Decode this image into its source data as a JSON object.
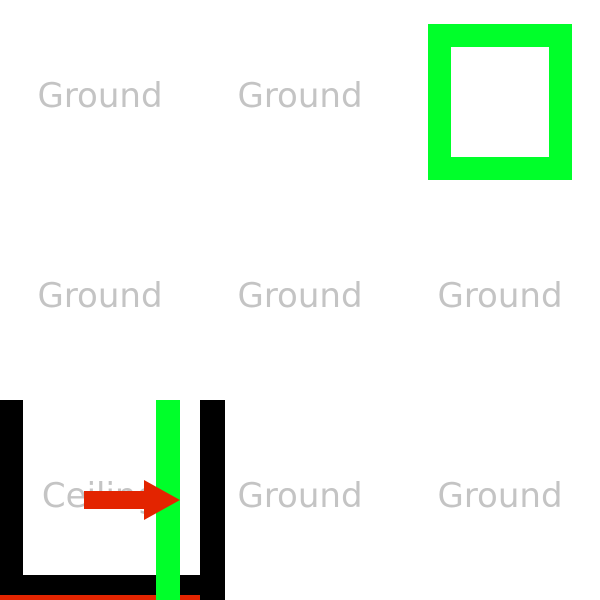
{
  "grid": {
    "rows": 3,
    "cols": 3,
    "cells": [
      {
        "row": 0,
        "col": 0,
        "label": "Ground"
      },
      {
        "row": 0,
        "col": 1,
        "label": "Ground"
      },
      {
        "row": 0,
        "col": 2,
        "label": ""
      },
      {
        "row": 1,
        "col": 0,
        "label": "Ground"
      },
      {
        "row": 1,
        "col": 1,
        "label": "Ground"
      },
      {
        "row": 1,
        "col": 2,
        "label": "Ground"
      },
      {
        "row": 2,
        "col": 0,
        "label": "Ceiling"
      },
      {
        "row": 2,
        "col": 1,
        "label": "Ground"
      },
      {
        "row": 2,
        "col": 2,
        "label": "Ground"
      }
    ]
  },
  "goal": {
    "row": 0,
    "col": 2,
    "color": "#00ff2a"
  },
  "player": {
    "row": 2,
    "col": 0,
    "facing": "right",
    "arrow_icon": "arrow-right-icon",
    "colors": {
      "body": "#000000",
      "bar": "#00ff2a",
      "arrow": "#e32400"
    }
  },
  "style": {
    "label_color": "#c4c4c4",
    "background": "#ffffff"
  }
}
